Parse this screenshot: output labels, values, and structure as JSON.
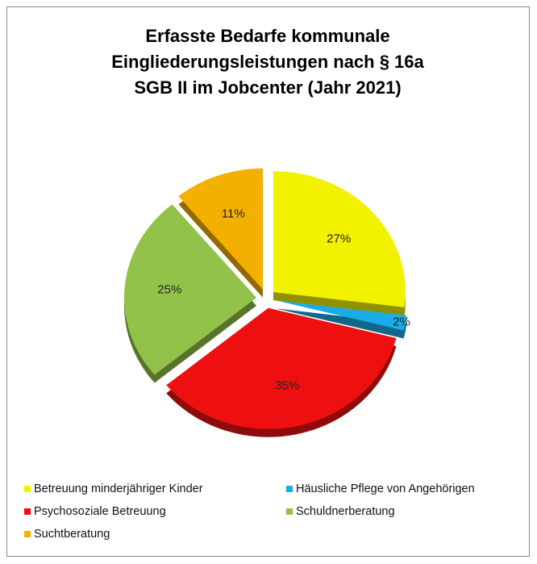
{
  "chart_data": {
    "type": "pie",
    "title": [
      "Erfasste Bedarfe kommunale",
      "Eingliederungsleistungen nach § 16a",
      "SGB II im Jobcenter  (Jahr 2021)"
    ],
    "categories": [
      "Betreuung minderjähriger Kinder",
      "Häusliche Pflege von Angehörigen",
      "Psychosoziale Betreuung",
      "Schuldnerberatung",
      "Suchtberatung"
    ],
    "values": [
      27,
      2,
      35,
      25,
      11
    ],
    "value_labels": [
      "27%",
      "2%",
      "35%",
      "25%",
      "11%"
    ],
    "colors": [
      "#f2f200",
      "#1aace6",
      "#ee1010",
      "#92c24a",
      "#f4b000"
    ],
    "legend": "bottom"
  }
}
